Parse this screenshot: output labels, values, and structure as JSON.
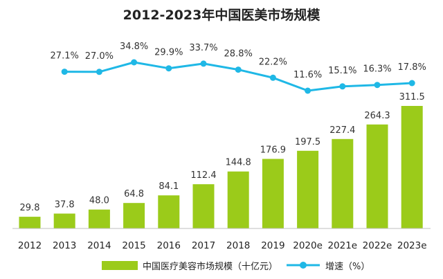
{
  "chart_data": {
    "type": "bar",
    "title": "2012-2023年中国医美市场规模",
    "categories": [
      "2012",
      "2013",
      "2014",
      "2015",
      "2016",
      "2017",
      "2018",
      "2019",
      "2020e",
      "2021e",
      "2022e",
      "2023e"
    ],
    "series": [
      {
        "name": "中国医疗美容市场规模（十亿元）",
        "type": "bar",
        "values": [
          29.8,
          37.8,
          48.0,
          64.8,
          84.1,
          112.4,
          144.8,
          176.9,
          197.5,
          227.4,
          264.3,
          311.5
        ],
        "labels": [
          "29.8",
          "37.8",
          "48.0",
          "64.8",
          "84.1",
          "112.4",
          "144.8",
          "176.9",
          "197.5",
          "227.4",
          "264.3",
          "311.5"
        ],
        "color": "#9BCB1A"
      },
      {
        "name": "增速（%）",
        "type": "line",
        "values": [
          null,
          27.1,
          27.0,
          34.8,
          29.9,
          33.7,
          28.8,
          22.2,
          11.6,
          15.1,
          16.3,
          17.8
        ],
        "labels": [
          null,
          "27.1%",
          "27.0%",
          "34.8%",
          "29.9%",
          "33.7%",
          "28.8%",
          "22.2%",
          "11.6%",
          "15.1%",
          "16.3%",
          "17.8%"
        ],
        "color": "#1FB8E6"
      }
    ],
    "ylim_bar": [
      0,
      311.5
    ],
    "ylim_line": [
      11.6,
      34.8
    ],
    "grid": false,
    "legend": "bottom"
  }
}
